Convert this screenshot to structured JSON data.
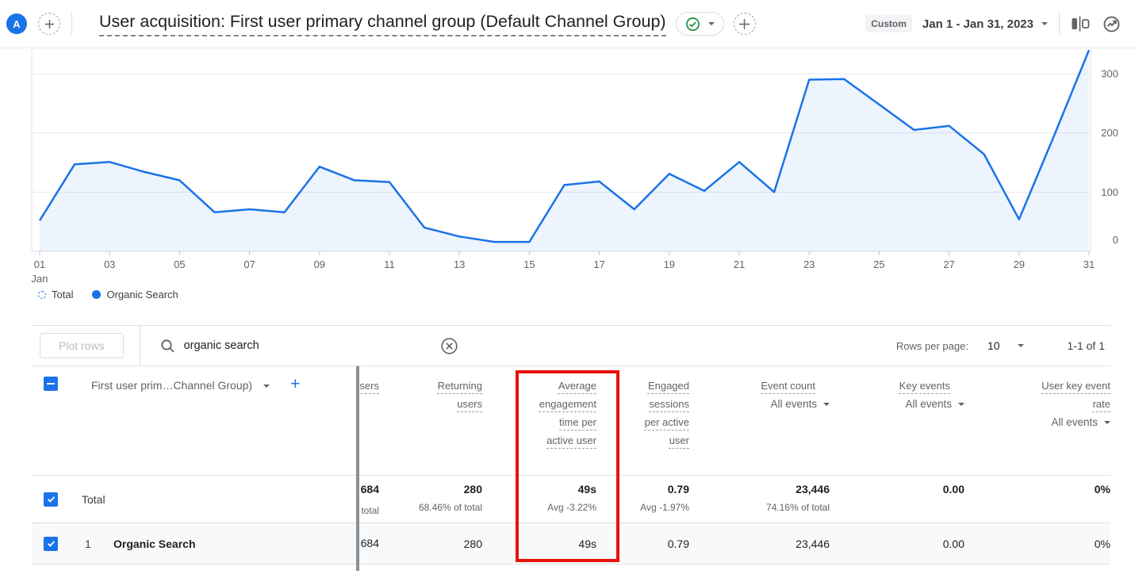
{
  "topbar": {
    "avatar_label": "A",
    "title": "User acquisition: First user primary channel group (Default Channel Group)",
    "custom_chip": "Custom",
    "date_range": "Jan 1 - Jan 31, 2023"
  },
  "chart_data": {
    "type": "area",
    "title": "",
    "xlabel": "",
    "ylabel": "",
    "days": [
      1,
      2,
      3,
      4,
      5,
      6,
      7,
      8,
      9,
      10,
      11,
      12,
      13,
      14,
      15,
      16,
      17,
      18,
      19,
      20,
      21,
      22,
      23,
      24,
      25,
      26,
      27,
      28,
      29,
      30,
      31
    ],
    "series": [
      {
        "name": "Organic Search",
        "values": [
          52,
          147,
          151,
          134,
          120,
          66,
          71,
          66,
          143,
          120,
          117,
          40,
          25,
          16,
          16,
          112,
          118,
          71,
          131,
          102,
          151,
          100,
          290,
          291,
          248,
          205,
          212,
          164,
          54,
          195,
          340
        ]
      }
    ],
    "x_axis": {
      "tick_days": [
        1,
        3,
        5,
        7,
        9,
        11,
        13,
        15,
        17,
        19,
        21,
        23,
        25,
        27,
        29,
        31
      ],
      "tick_labels": [
        "01",
        "03",
        "05",
        "07",
        "09",
        "11",
        "13",
        "15",
        "17",
        "19",
        "21",
        "23",
        "25",
        "27",
        "29",
        "31"
      ],
      "first_tick_sublabel": "Jan"
    },
    "y_axis": {
      "ticks": [
        0,
        100,
        200,
        300
      ],
      "position": "right"
    },
    "ylim": [
      0,
      340
    ],
    "grid": true,
    "legend_position": "bottom-left",
    "legend": [
      {
        "label": "Total",
        "marker": "dashed-circle"
      },
      {
        "label": "Organic Search",
        "marker": "solid-dot"
      }
    ],
    "line_color": "#1a73e8",
    "fill_color": "rgba(26,115,232,0.08)"
  },
  "toolbar": {
    "plot_rows_label": "Plot rows",
    "search_value": "organic search",
    "rows_per_page_label": "Rows per page:",
    "rows_per_page_value": "10",
    "pagination": "1-1 of 1"
  },
  "table": {
    "dimension_header": "First user prim…Channel Group)",
    "columns": [
      {
        "label": "Users"
      },
      {
        "label": "Returning users"
      },
      {
        "label": "Average engagement time per active user",
        "highlighted": true
      },
      {
        "label": "Engaged sessions per active user"
      },
      {
        "label": "Event count",
        "filter": "All events"
      },
      {
        "label": "Key events",
        "filter": "All events"
      },
      {
        "label": "User key event rate",
        "filter": "All events"
      }
    ],
    "total_row": {
      "label": "Total",
      "values": [
        "684",
        "280",
        "49s",
        "0.79",
        "23,446",
        "0.00",
        "0%"
      ],
      "subvalues": [
        "% of total",
        "68.46% of total",
        "Avg -3.22%",
        "Avg -1.97%",
        "74.16% of total",
        "",
        ""
      ]
    },
    "rows": [
      {
        "index": "1",
        "name": "Organic Search",
        "values": [
          "684",
          "280",
          "49s",
          "0.79",
          "23,446",
          "0.00",
          "0%"
        ]
      }
    ]
  },
  "colors": {
    "accent_blue": "#1a73e8",
    "highlight_red": "#e8120b",
    "check_green": "#1e8e3e",
    "text_dark": "#202124",
    "text_gray": "#5f6368"
  }
}
